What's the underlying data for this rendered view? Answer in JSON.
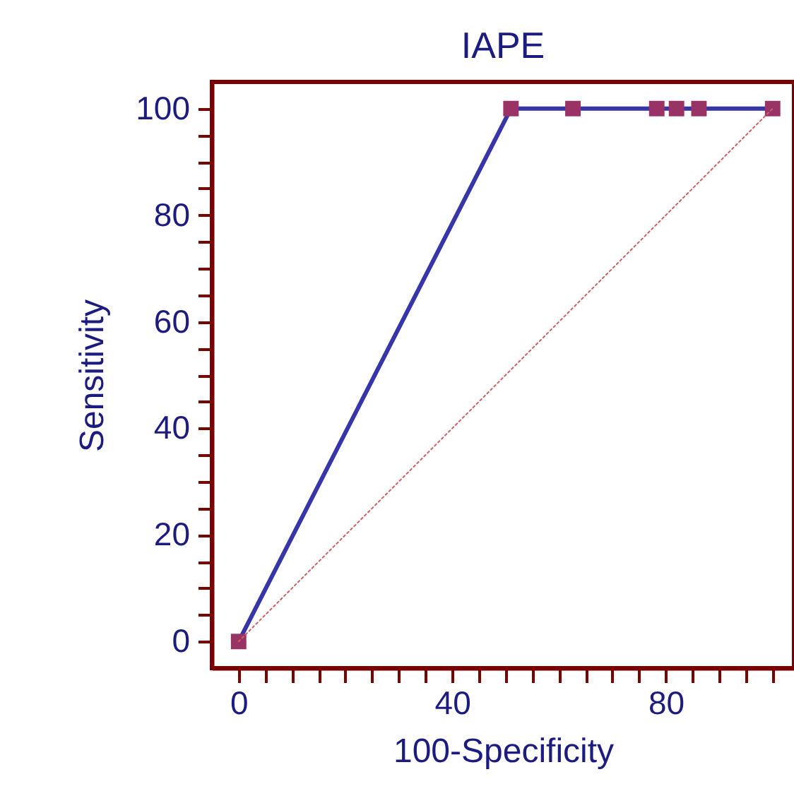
{
  "chart_data": {
    "type": "line",
    "title": "IAPE",
    "xlabel": "100-Specificity",
    "ylabel": "Sensitivity",
    "series": [
      {
        "x": [
          0,
          51,
          62.6,
          78.3,
          82,
          86.2,
          100
        ],
        "values": [
          0,
          100,
          100,
          100,
          100,
          100,
          100
        ],
        "color": "#3636a8",
        "colors": [
          "#993366",
          "#993366",
          "#993366",
          "#993366",
          "#993366",
          "#993366",
          "#993366"
        ],
        "marker": "square",
        "line_style": "solid"
      },
      {
        "type": "line",
        "x": [
          0,
          100
        ],
        "values": [
          0,
          100
        ],
        "color": "#d06060",
        "marker": "none",
        "line_style": "dotted"
      }
    ],
    "xlim": [
      -5,
      104
    ],
    "ylim": [
      -5,
      105
    ],
    "xticks": [
      0,
      {
        "value": 5,
        "label": null
      },
      {
        "value": 10,
        "label": null
      },
      {
        "value": 15,
        "label": null
      },
      {
        "value": 20,
        "label": null
      },
      {
        "value": 25,
        "label": null
      },
      {
        "value": 30,
        "label": null
      },
      {
        "value": 35,
        "label": null
      },
      40,
      {
        "value": 45,
        "label": null
      },
      {
        "value": 50,
        "label": null
      },
      {
        "value": 55,
        "label": null
      },
      {
        "value": 60,
        "label": null
      },
      {
        "value": 65,
        "label": null
      },
      {
        "value": 70,
        "label": null
      },
      {
        "value": 75,
        "label": null
      },
      80,
      {
        "value": 85,
        "label": null
      },
      {
        "value": 90,
        "label": null
      },
      {
        "value": 95,
        "label": null
      },
      {
        "value": 100,
        "label": null
      }
    ],
    "yticks": [
      0,
      {
        "value": 5,
        "label": null
      },
      {
        "value": 10,
        "label": null
      },
      {
        "value": 15,
        "label": null
      },
      20,
      {
        "value": 25,
        "label": null
      },
      {
        "value": 30,
        "label": null
      },
      {
        "value": 35,
        "label": null
      },
      40,
      {
        "value": 45,
        "label": null
      },
      {
        "value": 50,
        "label": null
      },
      {
        "value": 55,
        "label": null
      },
      60,
      {
        "value": 65,
        "label": null
      },
      {
        "value": 70,
        "label": null
      },
      {
        "value": 75,
        "label": null
      },
      80,
      {
        "value": 85,
        "label": null
      },
      {
        "value": 90,
        "label": null
      },
      {
        "value": 95,
        "label": null
      },
      100
    ],
    "grid": false
  }
}
